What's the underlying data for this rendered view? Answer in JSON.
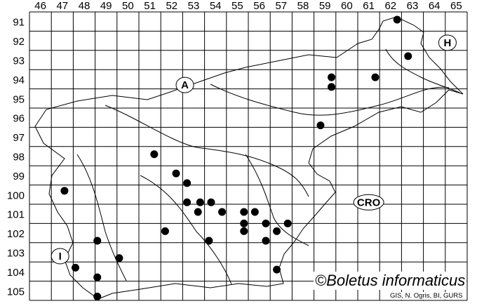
{
  "map": {
    "column_labels": [
      "46",
      "47",
      "48",
      "49",
      "50",
      "51",
      "52",
      "53",
      "54",
      "55",
      "56",
      "57",
      "58",
      "59",
      "60",
      "61",
      "62",
      "63",
      "64",
      "65"
    ],
    "row_labels": [
      "91",
      "92",
      "93",
      "94",
      "95",
      "96",
      "97",
      "98",
      "99",
      "100",
      "101",
      "102",
      "103",
      "104",
      "105"
    ],
    "region_labels": [
      {
        "text": "A",
        "col": 52.6,
        "row": 94.3
      },
      {
        "text": "H",
        "col": 64.6,
        "row": 92.1
      },
      {
        "text": "CRO",
        "col": 61.0,
        "row": 100.4
      },
      {
        "text": "I",
        "col": 46.9,
        "row": 103.2
      }
    ],
    "records": [
      {
        "col": 62.3,
        "row": 90.9
      },
      {
        "col": 62.8,
        "row": 92.8
      },
      {
        "col": 59.3,
        "row": 93.9
      },
      {
        "col": 59.3,
        "row": 94.4
      },
      {
        "col": 61.3,
        "row": 93.9
      },
      {
        "col": 58.8,
        "row": 96.4
      },
      {
        "col": 51.2,
        "row": 97.9
      },
      {
        "col": 52.2,
        "row": 98.9
      },
      {
        "col": 52.7,
        "row": 99.4
      },
      {
        "col": 47.1,
        "row": 99.8
      },
      {
        "col": 52.7,
        "row": 100.4
      },
      {
        "col": 53.3,
        "row": 100.4
      },
      {
        "col": 53.8,
        "row": 100.4
      },
      {
        "col": 53.2,
        "row": 100.9
      },
      {
        "col": 54.3,
        "row": 100.9
      },
      {
        "col": 55.3,
        "row": 100.9
      },
      {
        "col": 55.8,
        "row": 100.9
      },
      {
        "col": 55.3,
        "row": 101.5
      },
      {
        "col": 56.3,
        "row": 101.5
      },
      {
        "col": 57.3,
        "row": 101.5
      },
      {
        "col": 55.3,
        "row": 101.9
      },
      {
        "col": 56.8,
        "row": 101.9
      },
      {
        "col": 51.7,
        "row": 101.9
      },
      {
        "col": 48.6,
        "row": 102.4
      },
      {
        "col": 53.7,
        "row": 102.4
      },
      {
        "col": 56.3,
        "row": 102.4
      },
      {
        "col": 49.6,
        "row": 103.3
      },
      {
        "col": 47.6,
        "row": 103.8
      },
      {
        "col": 48.6,
        "row": 104.3
      },
      {
        "col": 56.8,
        "row": 103.9
      },
      {
        "col": 48.6,
        "row": 105.3
      }
    ],
    "dot_color": "#000000"
  },
  "copyright": "©Boletus informaticus",
  "credit": "GIS, N. Ogris, BI, GURS"
}
